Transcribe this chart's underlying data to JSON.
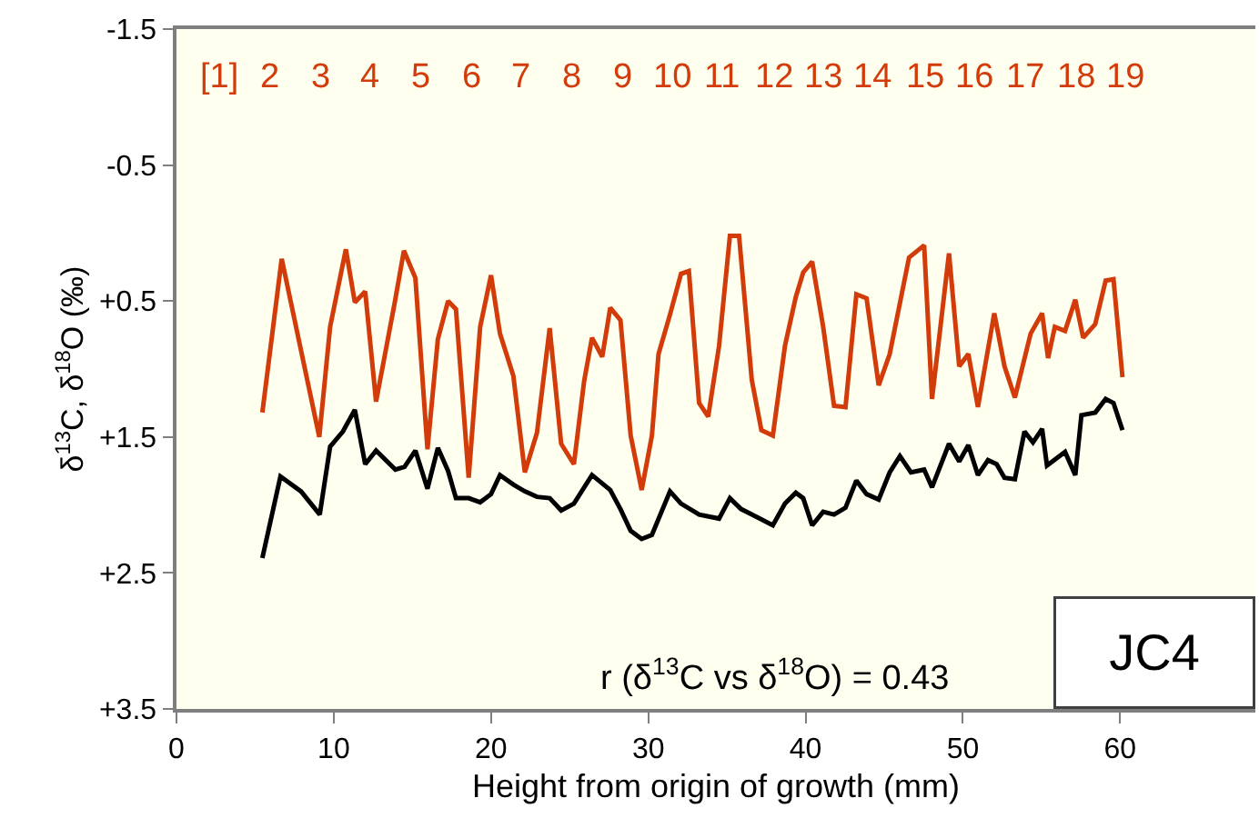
{
  "chart_data": {
    "type": "line",
    "xlabel": "Height from origin of growth (mm)",
    "ylabel": "δ$^{13}$C, δ$^{18}$O (‰)",
    "xlim": [
      0,
      68.6
    ],
    "xticks": [
      0,
      10,
      20,
      30,
      40,
      50,
      60
    ],
    "ylim": [
      3.5,
      -1.5
    ],
    "yticks": [
      -1.5,
      -0.5,
      {
        "value": 0.5,
        "label": "+0.5"
      },
      {
        "value": 1.5,
        "label": "+1.5"
      },
      {
        "value": 2.5,
        "label": "+2.5"
      },
      {
        "value": 3.5,
        "label": "+3.5"
      }
    ],
    "grid": false,
    "marker": "none",
    "line_style": "solid",
    "series": [
      {
        "color": "#000000",
        "x": [
          5.46,
          6.61,
          7.92,
          9.11,
          9.77,
          10.58,
          11.34,
          12.0,
          12.69,
          13.92,
          14.5,
          15.19,
          15.96,
          16.62,
          17.27,
          17.77,
          18.58,
          19.31,
          20.0,
          20.57,
          21.42,
          22.15,
          22.92,
          23.73,
          24.46,
          25.27,
          26.42,
          27.58,
          28.23,
          28.88,
          29.58,
          30.23,
          31.38,
          32.08,
          33.23,
          34.5,
          35.19,
          35.9,
          36.58,
          37.92,
          38.69,
          39.38,
          39.85,
          40.42,
          41.12,
          41.81,
          42.54,
          43.23,
          43.88,
          44.65,
          45.35,
          46.0,
          46.7,
          47.54,
          48.04,
          49.12,
          49.77,
          50.35,
          50.96,
          51.6,
          52.15,
          52.65,
          53.31,
          53.92,
          54.46,
          55.04,
          55.35,
          56.5,
          57.15,
          57.54,
          58.42,
          59.08,
          59.58,
          60.15
        ],
        "values": [
          2.39,
          1.79,
          1.9,
          2.07,
          1.57,
          1.46,
          1.3,
          1.7,
          1.6,
          1.74,
          1.72,
          1.6,
          1.88,
          1.58,
          1.75,
          1.95,
          1.95,
          1.98,
          1.92,
          1.78,
          1.85,
          1.9,
          1.94,
          1.95,
          2.04,
          1.99,
          1.78,
          1.89,
          2.03,
          2.19,
          2.25,
          2.22,
          1.9,
          1.99,
          2.07,
          2.1,
          1.95,
          2.03,
          2.07,
          2.15,
          1.99,
          1.91,
          1.95,
          2.15,
          2.05,
          2.07,
          2.02,
          1.82,
          1.92,
          1.96,
          1.76,
          1.64,
          1.76,
          1.74,
          1.87,
          1.55,
          1.68,
          1.56,
          1.78,
          1.67,
          1.7,
          1.8,
          1.81,
          1.46,
          1.54,
          1.44,
          1.71,
          1.61,
          1.78,
          1.34,
          1.32,
          1.22,
          1.25,
          1.45
        ]
      },
      {
        "color": "#d23c0a",
        "x": [
          5.46,
          6.69,
          9.08,
          9.77,
          10.77,
          11.34,
          12.0,
          12.69,
          13.88,
          14.46,
          15.19,
          15.96,
          16.62,
          17.27,
          17.77,
          18.58,
          19.31,
          20.0,
          20.57,
          21.42,
          22.15,
          22.92,
          23.73,
          24.46,
          25.27,
          25.92,
          26.42,
          27.07,
          27.58,
          28.23,
          28.88,
          29.58,
          30.23,
          30.65,
          31.38,
          32.08,
          32.58,
          33.23,
          33.81,
          34.5,
          35.19,
          35.77,
          36.58,
          37.19,
          37.92,
          38.69,
          39.38,
          39.85,
          40.42,
          41.12,
          41.81,
          42.54,
          43.23,
          43.88,
          44.65,
          45.35,
          46.58,
          47.54,
          48.04,
          49.12,
          49.77,
          50.35,
          50.96,
          52.0,
          52.65,
          53.31,
          54.31,
          55.04,
          55.42,
          55.85,
          56.5,
          57.15,
          57.65,
          58.42,
          59.08,
          59.58,
          60.15
        ],
        "values": [
          1.32,
          0.19,
          1.5,
          0.69,
          0.12,
          0.51,
          0.43,
          1.24,
          0.51,
          0.13,
          0.33,
          1.59,
          0.78,
          0.5,
          0.56,
          1.8,
          0.69,
          0.31,
          0.74,
          1.05,
          1.76,
          1.47,
          0.7,
          1.55,
          1.7,
          1.09,
          0.77,
          0.91,
          0.55,
          0.64,
          1.49,
          1.89,
          1.49,
          0.89,
          0.6,
          0.3,
          0.28,
          1.25,
          1.35,
          0.83,
          0.02,
          0.02,
          1.08,
          1.45,
          1.49,
          0.83,
          0.47,
          0.29,
          0.21,
          0.69,
          1.27,
          1.28,
          0.45,
          0.48,
          1.12,
          0.89,
          0.18,
          0.09,
          1.22,
          0.15,
          0.98,
          0.89,
          1.28,
          0.59,
          0.98,
          1.21,
          0.74,
          0.59,
          0.92,
          0.69,
          0.72,
          0.49,
          0.77,
          0.67,
          0.35,
          0.34,
          1.06
        ]
      }
    ],
    "annotations": [
      "r (δ$^{13}$C vs δ$^{18}$O) = 0.43",
      "JC4",
      "[1]",
      "2",
      "3",
      "4",
      "5",
      "6",
      "7",
      "8",
      "9",
      "10",
      "11",
      "12",
      "13",
      "14",
      "15",
      "16",
      "17",
      "18",
      "19"
    ]
  }
}
